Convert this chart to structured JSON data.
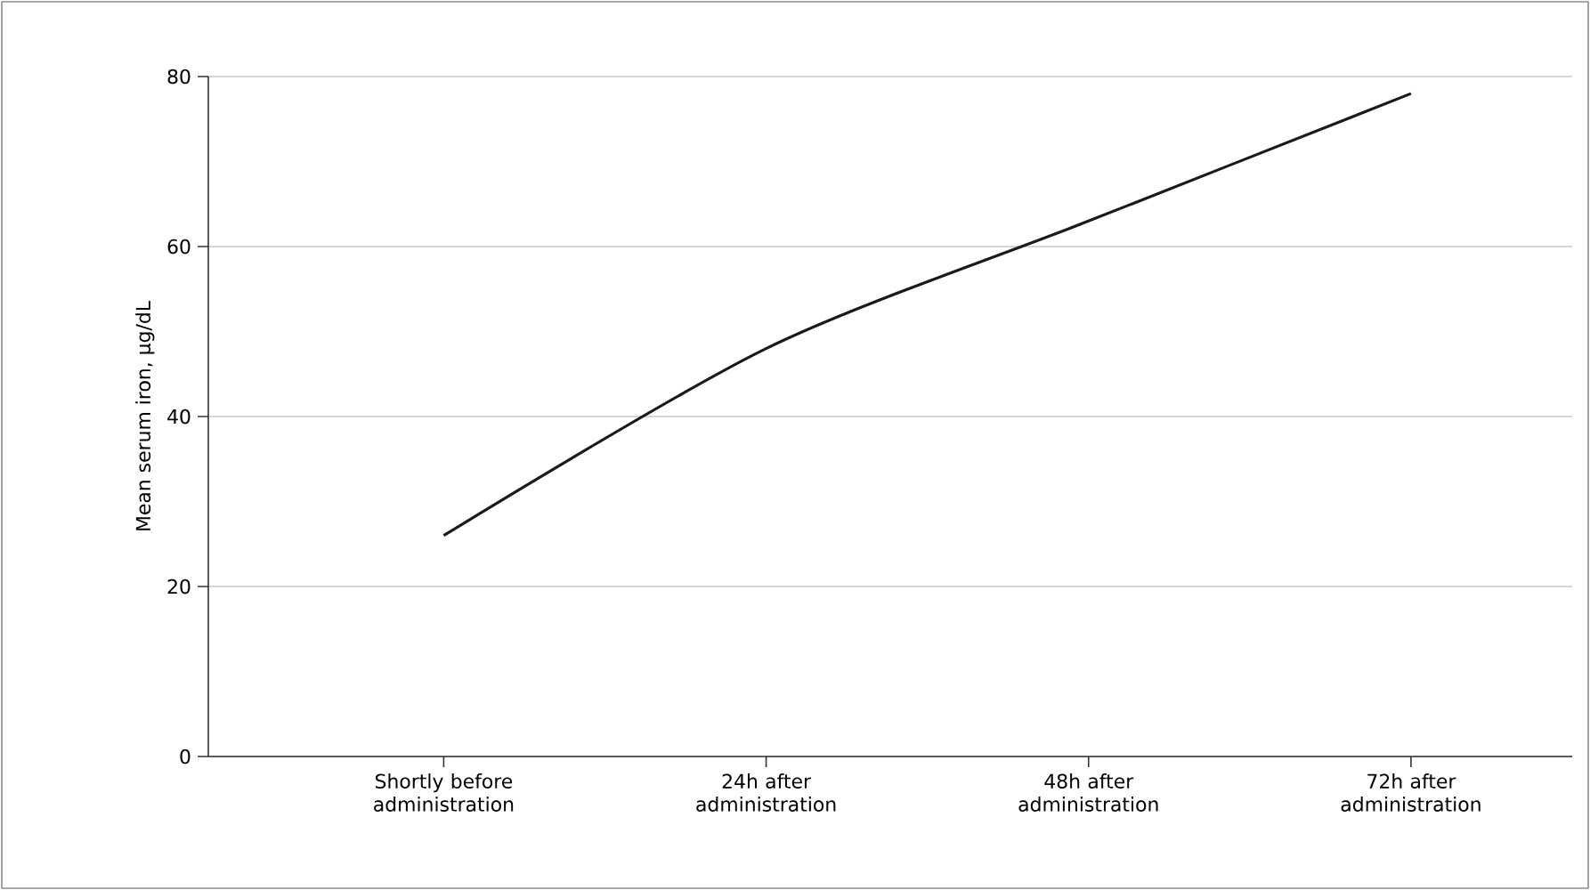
{
  "chart_data": {
    "type": "line",
    "ylabel": "Mean serum iron, µg/dL",
    "categories": [
      "Shortly before administration",
      "24h after administration",
      "48h after administration",
      "72h after administration"
    ],
    "series": [
      {
        "color": "#1a1a1a",
        "values": [
          26,
          48,
          63,
          78
        ]
      }
    ],
    "ylim": [
      0,
      80
    ],
    "yticks": [
      0,
      20,
      40,
      60,
      80
    ],
    "grid": "y",
    "marker": "none",
    "line_style": "solid"
  }
}
